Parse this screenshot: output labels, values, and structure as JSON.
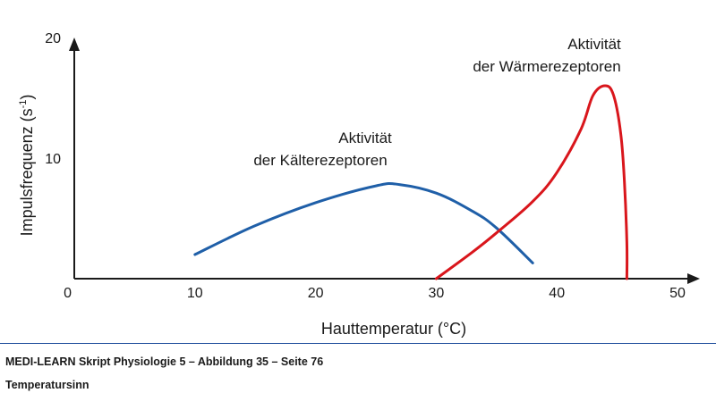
{
  "chart_data": {
    "type": "line",
    "xlabel": "Hauttemperatur (°C)",
    "ylabel_main": "Impulsfrequenz (s",
    "ylabel_sup": "-1",
    "ylabel_close": ")",
    "xlim": [
      0,
      50
    ],
    "ylim": [
      0,
      20
    ],
    "x_ticks": [
      "0",
      "10",
      "20",
      "30",
      "40",
      "50"
    ],
    "y_ticks": [
      "10",
      "20"
    ],
    "grid": false,
    "series": [
      {
        "name_lines": [
          "Aktivität",
          "der Kälterezeptoren"
        ],
        "color": "#1f5fa8",
        "points": [
          [
            10,
            2.0
          ],
          [
            15,
            4.4
          ],
          [
            20,
            6.3
          ],
          [
            25,
            7.7
          ],
          [
            27,
            7.8
          ],
          [
            30,
            7.1
          ],
          [
            33,
            5.6
          ],
          [
            35,
            4.2
          ],
          [
            38,
            1.3
          ]
        ]
      },
      {
        "name_lines": [
          "Aktivität",
          "der Wärmerezeptoren"
        ],
        "color": "#d9161c",
        "points": [
          [
            30,
            0
          ],
          [
            33,
            2.2
          ],
          [
            35,
            3.8
          ],
          [
            38,
            6.4
          ],
          [
            40,
            8.8
          ],
          [
            42,
            12.4
          ],
          [
            43,
            15.2
          ],
          [
            44,
            16.0
          ],
          [
            44.7,
            15.2
          ],
          [
            45.3,
            12.0
          ],
          [
            45.6,
            8.0
          ],
          [
            45.8,
            3.0
          ],
          [
            45.8,
            0
          ]
        ]
      }
    ]
  },
  "footer": {
    "caption_line1": "MEDI-LEARN Skript Physiologie 5 – Abbildung 35 – Seite 76",
    "caption_line2": "Temperatursinn"
  },
  "colors": {
    "rule": "#1f4e9c",
    "axis": "#1a1a1a"
  }
}
